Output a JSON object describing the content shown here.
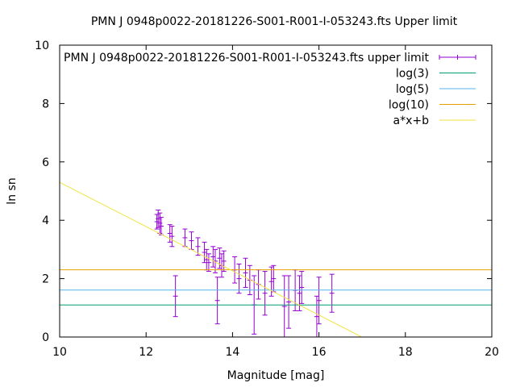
{
  "chart_data": {
    "type": "scatter",
    "title": "PMN J 0948p0022-20181226-S001-R001-I-053243.fts Upper limit",
    "xlabel": "Magnitude [mag]",
    "ylabel": "ln sn",
    "xlim": [
      10,
      20
    ],
    "ylim": [
      0,
      10
    ],
    "xticks": [
      10,
      12,
      14,
      16,
      18,
      20
    ],
    "yticks": [
      0,
      2,
      4,
      6,
      8,
      10
    ],
    "grid": false,
    "legend_position": "top-right",
    "series": [
      {
        "name": "PMN J 0948p0022-20181226-S001-R001-I-053243.fts upper limit",
        "style": "errorbars",
        "color": "#9400d3",
        "points": [
          {
            "x": 12.25,
            "y": 3.95,
            "err": 0.25
          },
          {
            "x": 12.28,
            "y": 4.05,
            "err": 0.3
          },
          {
            "x": 12.32,
            "y": 3.9,
            "err": 0.35
          },
          {
            "x": 12.35,
            "y": 3.8,
            "err": 0.3
          },
          {
            "x": 12.55,
            "y": 3.55,
            "err": 0.3
          },
          {
            "x": 12.6,
            "y": 3.45,
            "err": 0.35
          },
          {
            "x": 12.68,
            "y": 1.4,
            "err": 0.7
          },
          {
            "x": 12.9,
            "y": 3.4,
            "err": 0.3
          },
          {
            "x": 13.05,
            "y": 3.3,
            "err": 0.3
          },
          {
            "x": 13.2,
            "y": 3.1,
            "err": 0.3
          },
          {
            "x": 13.35,
            "y": 2.9,
            "err": 0.35
          },
          {
            "x": 13.4,
            "y": 2.65,
            "err": 0.35
          },
          {
            "x": 13.45,
            "y": 2.55,
            "err": 0.3
          },
          {
            "x": 13.55,
            "y": 2.75,
            "err": 0.35
          },
          {
            "x": 13.6,
            "y": 2.6,
            "err": 0.4
          },
          {
            "x": 13.65,
            "y": 1.25,
            "err": 0.8
          },
          {
            "x": 13.7,
            "y": 2.7,
            "err": 0.35
          },
          {
            "x": 13.75,
            "y": 2.45,
            "err": 0.4
          },
          {
            "x": 13.8,
            "y": 2.6,
            "err": 0.35
          },
          {
            "x": 14.05,
            "y": 2.3,
            "err": 0.45
          },
          {
            "x": 14.15,
            "y": 2.0,
            "err": 0.5
          },
          {
            "x": 14.3,
            "y": 2.2,
            "err": 0.5
          },
          {
            "x": 14.4,
            "y": 1.95,
            "err": 0.5
          },
          {
            "x": 14.5,
            "y": 1.1,
            "err": 1.0
          },
          {
            "x": 14.6,
            "y": 1.8,
            "err": 0.5
          },
          {
            "x": 14.75,
            "y": 1.5,
            "err": 0.75
          },
          {
            "x": 14.9,
            "y": 1.9,
            "err": 0.5
          },
          {
            "x": 14.95,
            "y": 2.0,
            "err": 0.45
          },
          {
            "x": 15.2,
            "y": 1.05,
            "err": 1.05
          },
          {
            "x": 15.3,
            "y": 1.2,
            "err": 0.9
          },
          {
            "x": 15.45,
            "y": 1.6,
            "err": 0.7
          },
          {
            "x": 15.55,
            "y": 1.5,
            "err": 0.6
          },
          {
            "x": 15.6,
            "y": 1.7,
            "err": 0.55
          },
          {
            "x": 15.95,
            "y": 0.7,
            "err": 0.7
          },
          {
            "x": 16.0,
            "y": 1.25,
            "err": 0.8
          },
          {
            "x": 16.3,
            "y": 1.5,
            "err": 0.65
          }
        ]
      },
      {
        "name": "log(3)",
        "style": "hline",
        "color": "#009e73",
        "y": 1.0986
      },
      {
        "name": "log(5)",
        "style": "hline",
        "color": "#56b4e9",
        "y": 1.6094
      },
      {
        "name": "log(10)",
        "style": "hline",
        "color": "#e69f00",
        "y": 2.3026
      },
      {
        "name": "a*x+b",
        "style": "line",
        "color": "#f0e442",
        "x": [
          10,
          16.99
        ],
        "y": [
          5.3,
          0.0
        ]
      }
    ]
  }
}
